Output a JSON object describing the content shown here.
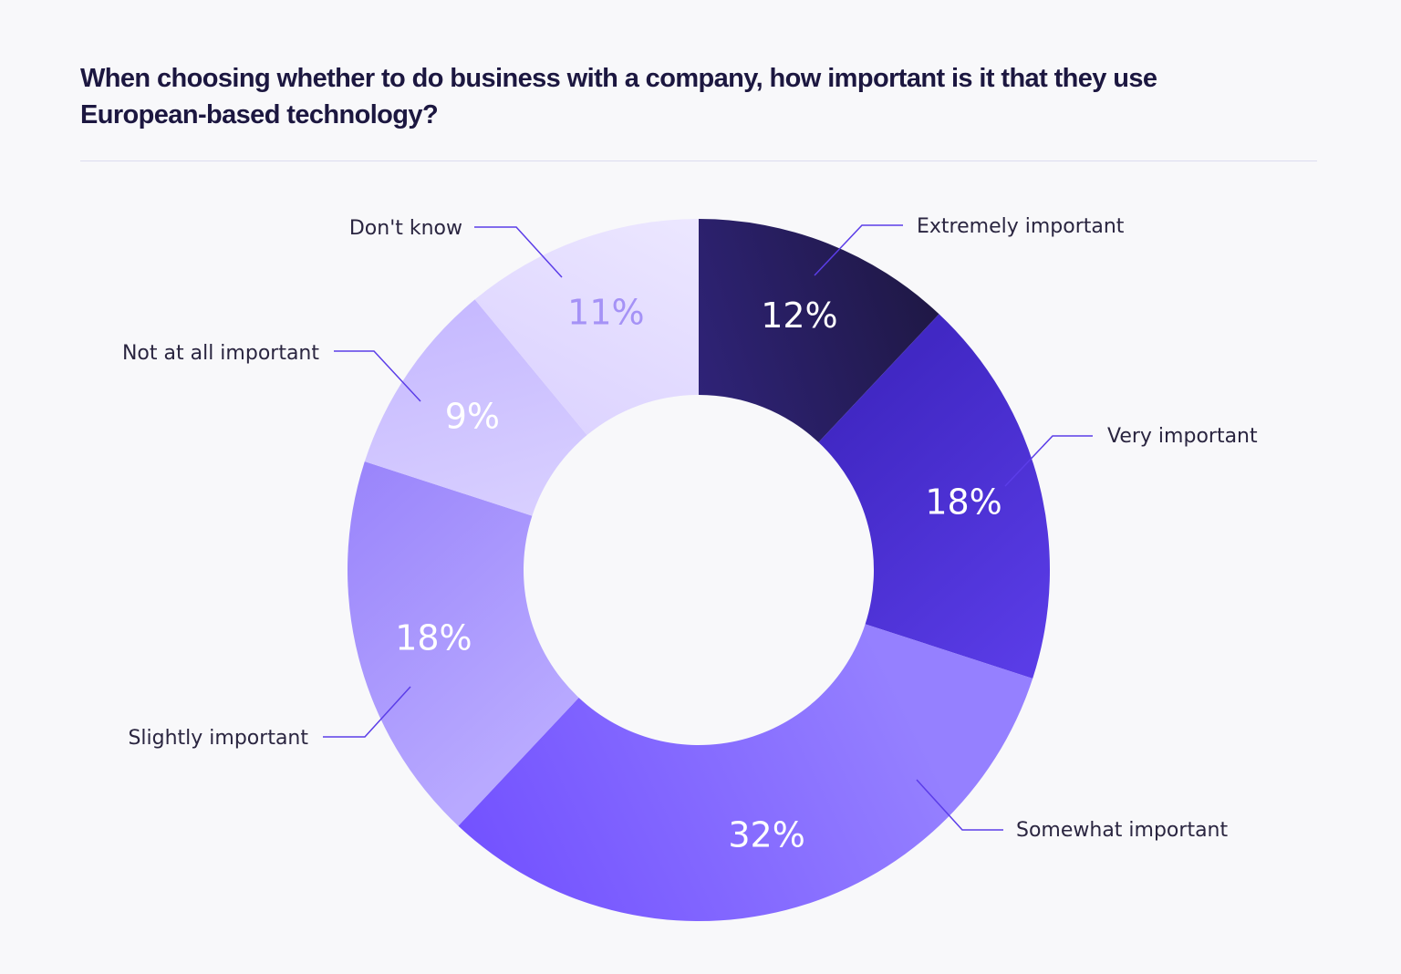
{
  "chart_data": {
    "type": "pie",
    "title": "When choosing whether to do business with a company, how important is it that they use European-based technology?",
    "donut": true,
    "legend": "none",
    "slices": [
      {
        "label": "Extremely important",
        "value": 12,
        "value_label": "12%",
        "color": "#1f1845",
        "color_alt": "#2f2378",
        "text_color": "#ffffff"
      },
      {
        "label": "Very important",
        "value": 18,
        "value_label": "18%",
        "color": "#5b3de8",
        "color_alt": "#4128c4",
        "text_color": "#ffffff"
      },
      {
        "label": "Somewhat important",
        "value": 32,
        "value_label": "32%",
        "color": "#7352ff",
        "color_alt": "#9580ff",
        "text_color": "#ffffff"
      },
      {
        "label": "Slightly important",
        "value": 18,
        "value_label": "18%",
        "color": "#9a85fb",
        "color_alt": "#b8a9ff",
        "text_color": "#ffffff"
      },
      {
        "label": "Not at all important",
        "value": 9,
        "value_label": "9%",
        "color": "#c6b9ff",
        "color_alt": "#d8cfff",
        "text_color": "#ffffff"
      },
      {
        "label": "Don't know",
        "value": 11,
        "value_label": "11%",
        "color": "#ece7ff",
        "color_alt": "#ddd4ff",
        "text_color": "#a592f6"
      }
    ],
    "leader_line_color": "#5b3de8"
  }
}
